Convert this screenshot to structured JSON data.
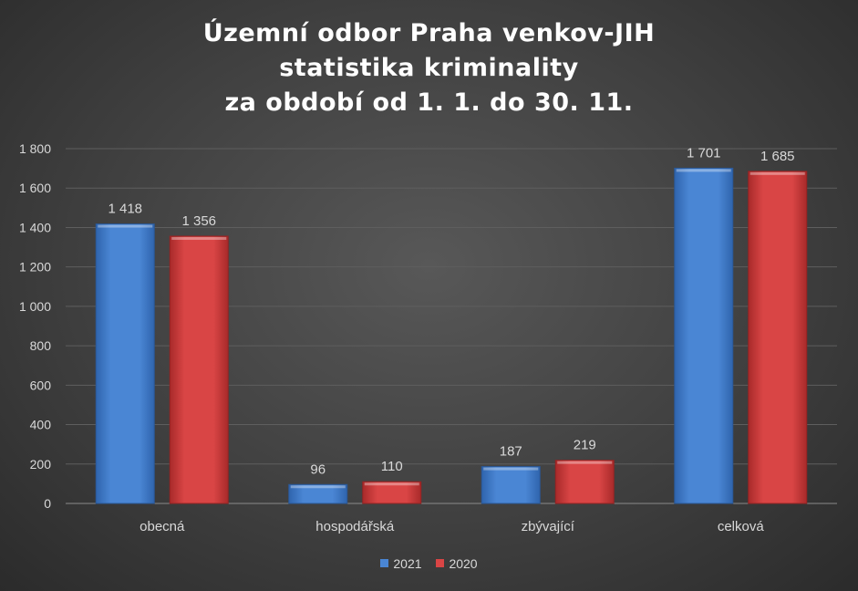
{
  "chart_data": {
    "type": "bar",
    "title_lines": [
      "Územní odbor Praha venkov-JIH",
      "statistika kriminality",
      "za období od 1. 1. do 30. 11."
    ],
    "categories": [
      "obecná",
      "hospodářská",
      "zbývající",
      "celková"
    ],
    "series": [
      {
        "name": "2021",
        "values": [
          1418,
          96,
          187,
          1701
        ],
        "labels": [
          "1 418",
          "96",
          "187",
          "1 701"
        ],
        "color": "#4a86d4"
      },
      {
        "name": "2020",
        "values": [
          1356,
          110,
          219,
          1685
        ],
        "labels": [
          "1 356",
          "110",
          "219",
          "1 685"
        ],
        "color": "#d94545"
      }
    ],
    "ylim": [
      0,
      1800
    ],
    "yticks": [
      0,
      200,
      400,
      600,
      800,
      1000,
      1200,
      1400,
      1600,
      1800
    ],
    "ytick_labels": [
      "0",
      "200",
      "400",
      "600",
      "800",
      "1 000",
      "1 200",
      "1 400",
      "1 600",
      "1 800"
    ],
    "grid": true,
    "legend_position": "bottom"
  }
}
